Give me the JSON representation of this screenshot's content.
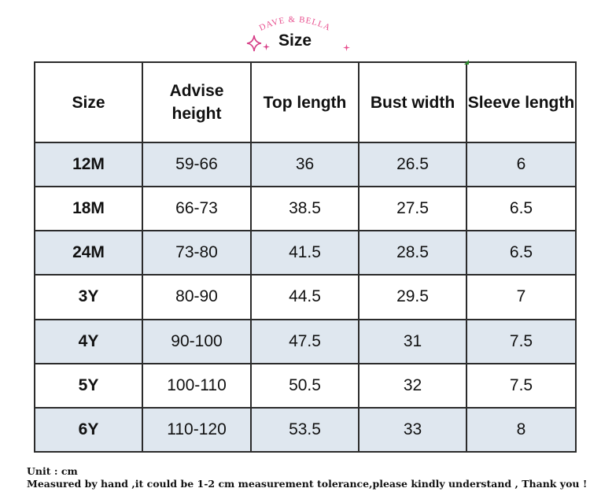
{
  "brand": {
    "logo_text": "DAVE & BELLA"
  },
  "title": "Size",
  "table": {
    "headers": [
      "Size",
      "Advise height",
      "Top length",
      "Bust width",
      "Sleeve length"
    ],
    "rows": [
      [
        "12M",
        "59-66",
        "36",
        "26.5",
        "6"
      ],
      [
        "18M",
        "66-73",
        "38.5",
        "27.5",
        "6.5"
      ],
      [
        "24M",
        "73-80",
        "41.5",
        "28.5",
        "6.5"
      ],
      [
        "3Y",
        "80-90",
        "44.5",
        "29.5",
        "7"
      ],
      [
        "4Y",
        "90-100",
        "47.5",
        "31",
        "7.5"
      ],
      [
        "5Y",
        "100-110",
        "50.5",
        "32",
        "7.5"
      ],
      [
        "6Y",
        "110-120",
        "53.5",
        "33",
        "8"
      ]
    ]
  },
  "notes": {
    "unit": "Unit : cm",
    "disclaimer": "Measured by hand ,it could be 1-2 cm measurement tolerance,please kindly understand , Thank you !"
  },
  "colors": {
    "shaded_row": "#dfe7ef",
    "brand_pink": "#e8508f"
  }
}
